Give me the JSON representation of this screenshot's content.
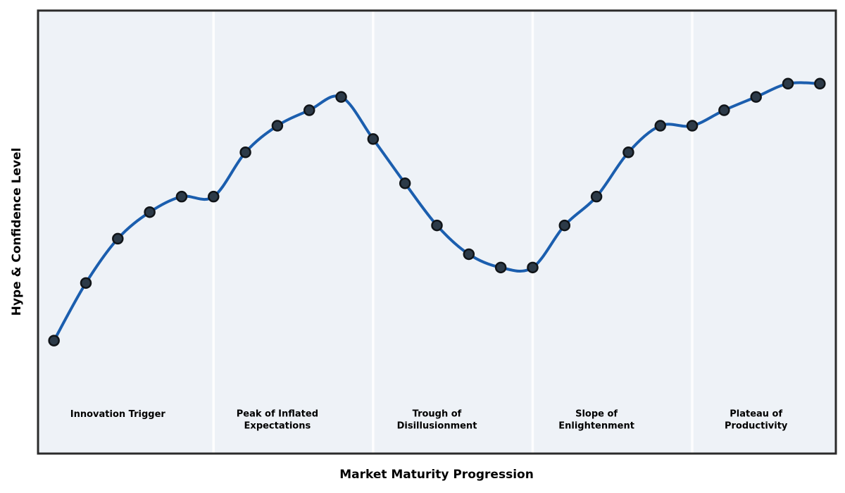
{
  "figure": {
    "background": "#ffffff"
  },
  "chart_data": {
    "type": "line",
    "title": "",
    "xlabel": "Market Maturity Progression",
    "ylabel": "Hype & Confidence Level",
    "x": [
      0,
      1,
      2,
      3,
      4,
      5,
      6,
      7,
      8,
      9,
      10,
      11,
      12,
      13,
      14,
      15,
      16,
      17,
      18,
      19,
      20,
      21,
      22,
      23,
      24
    ],
    "values": [
      25.5,
      38.5,
      48.5,
      54.5,
      58,
      58,
      68,
      74,
      77.5,
      80.5,
      71,
      61,
      51.5,
      45,
      42,
      42,
      51.5,
      58,
      68,
      74,
      74,
      77.5,
      80.5,
      83.5,
      83.5
    ],
    "xlim": [
      -0.5,
      24.5
    ],
    "ylim": [
      0,
      100
    ],
    "grid": false,
    "legend": false,
    "smooth_curve": true,
    "ticks_visible": false,
    "line_color": "#1b5eae",
    "line_width": 4,
    "marker": {
      "shape": "circle",
      "fill": "#2c3a48",
      "edge": "#101418",
      "radius": 7,
      "edge_width": 2.5
    },
    "plot_background": "#eef2f7",
    "frame_color": "#2b2b2b",
    "phase_separator_color": "#fdfdfe",
    "phase_separators_x": [
      5,
      10,
      15,
      20
    ],
    "phases": [
      {
        "lines": [
          "Innovation Trigger"
        ],
        "center_x": 2
      },
      {
        "lines": [
          "Peak of Inflated",
          "Expectations"
        ],
        "center_x": 7
      },
      {
        "lines": [
          "Trough of",
          "Disillusionment"
        ],
        "center_x": 12
      },
      {
        "lines": [
          "Slope of",
          "Enlightenment"
        ],
        "center_x": 17
      },
      {
        "lines": [
          "Plateau of",
          "Productivity"
        ],
        "center_x": 22
      }
    ]
  }
}
